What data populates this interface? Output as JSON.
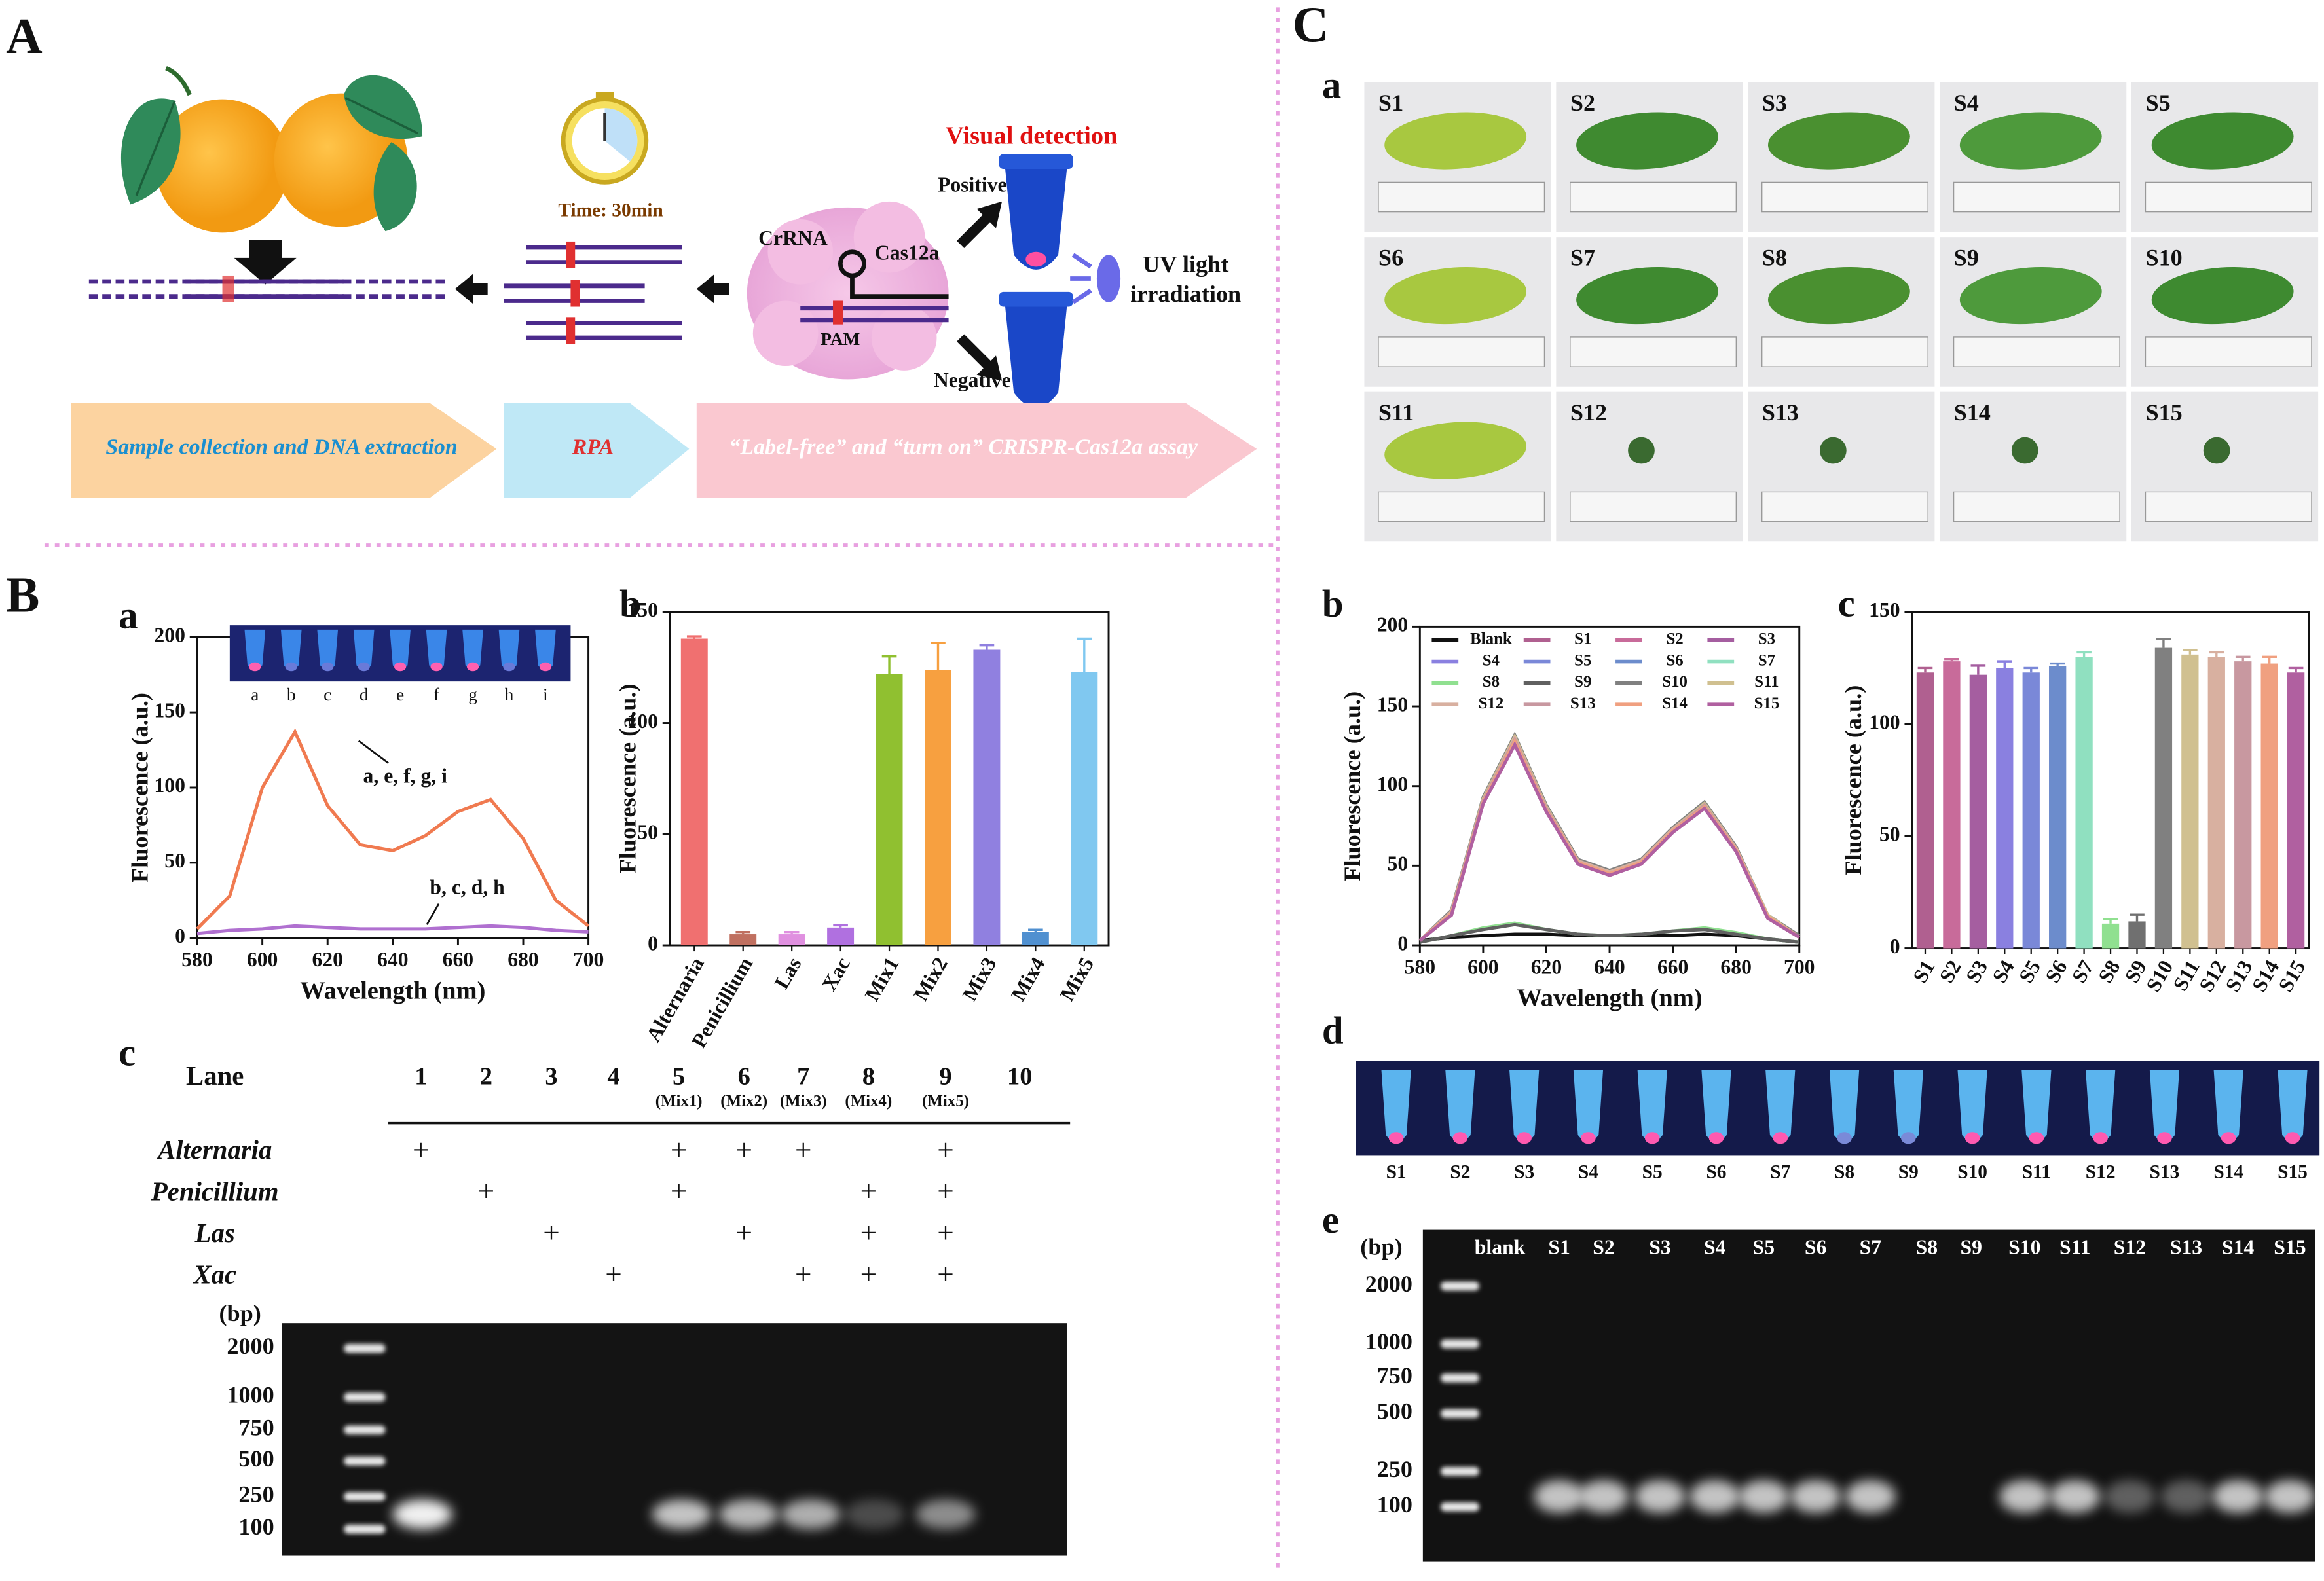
{
  "panel_labels": {
    "A": "A",
    "B": "B",
    "C": "C"
  },
  "sub_labels": {
    "Ba": "a",
    "Bb": "b",
    "Bc": "c",
    "Ca": "a",
    "Cb": "b",
    "Cc": "c",
    "Cd": "d",
    "Ce": "e"
  },
  "schematic": {
    "time": "Time: 30min",
    "visual": "Visual detection",
    "positive": "Positive",
    "negative": "Negative",
    "crrna": "CrRNA",
    "cas": "Cas12a",
    "pam": "PAM",
    "uv": [
      "UV light",
      "irradiation"
    ],
    "steps": [
      "Sample collection and DNA extraction",
      "RPA",
      "“Label-free” and “turn on” CRISPR-Cas12a assay"
    ]
  },
  "inset_labels": [
    "a",
    "b",
    "c",
    "d",
    "e",
    "f",
    "g",
    "h",
    "i"
  ],
  "lane_table": {
    "header": "Lane",
    "lanes": [
      "1",
      "2",
      "3",
      "4",
      "5",
      "6",
      "7",
      "8",
      "9",
      "10"
    ],
    "mix": [
      "(Mix1)",
      "(Mix2)",
      "(Mix3)",
      "(Mix4)",
      "(Mix5)"
    ],
    "rows": [
      {
        "name": "Alternaria",
        "marks": [
          "+",
          null,
          null,
          null,
          "+",
          "+",
          "+",
          null,
          "+",
          null
        ]
      },
      {
        "name": "Penicillium",
        "marks": [
          null,
          "+",
          null,
          null,
          "+",
          null,
          null,
          "+",
          "+",
          null
        ]
      },
      {
        "name": "Las",
        "marks": [
          null,
          null,
          "+",
          null,
          null,
          "+",
          null,
          "+",
          "+",
          null
        ]
      },
      {
        "name": "Xac",
        "marks": [
          null,
          null,
          null,
          "+",
          null,
          null,
          "+",
          "+",
          "+",
          null
        ]
      }
    ]
  },
  "gel_B": {
    "unit": "(bp)",
    "ladder": [
      2000,
      1000,
      750,
      500,
      250,
      100
    ]
  },
  "leaves": [
    "S1",
    "S2",
    "S3",
    "S4",
    "S5",
    "S6",
    "S7",
    "S8",
    "S9",
    "S10",
    "S11",
    "S12",
    "S13",
    "S14",
    "S15"
  ],
  "tubes": [
    "S1",
    "S2",
    "S3",
    "S4",
    "S5",
    "S6",
    "S7",
    "S8",
    "S9",
    "S10",
    "S11",
    "S12",
    "S13",
    "S14",
    "S15"
  ],
  "gel_C": {
    "unit": "(bp)",
    "ladder": [
      2000,
      1000,
      750,
      500,
      250,
      100
    ],
    "lanes": [
      "blank",
      "S1",
      "S2",
      "S3",
      "S4",
      "S5",
      "S6",
      "S7",
      "S8",
      "S9",
      "S10",
      "S11",
      "S12",
      "S13",
      "S14",
      "S15"
    ]
  },
  "chart_data": [
    {
      "type": "line",
      "x_label": "Wavelength (nm)",
      "y_label": "Fluorescence (a.u.)",
      "x": [
        580,
        590,
        600,
        610,
        620,
        630,
        640,
        650,
        660,
        670,
        680,
        690,
        700
      ],
      "xlim": [
        580,
        700
      ],
      "xticks": [
        580,
        600,
        620,
        640,
        660,
        680,
        700
      ],
      "ylim": [
        0,
        200
      ],
      "yticks": [
        0,
        50,
        100,
        150,
        200
      ],
      "annotations": [
        "a, e, f, g, i",
        "b, c, d, h"
      ],
      "series": [
        {
          "color": "#f07a50",
          "values": [
            6,
            28,
            100,
            137,
            88,
            62,
            58,
            68,
            84,
            92,
            66,
            25,
            8
          ]
        },
        {
          "color": "#b070d0",
          "values": [
            3,
            5,
            6,
            8,
            7,
            6,
            6,
            6,
            7,
            8,
            7,
            5,
            4
          ]
        }
      ]
    },
    {
      "type": "bar",
      "y_label": "Fluorescence (a.u.)",
      "categories": [
        "Alternaria",
        "Penicillium",
        "Las",
        "Xac",
        "Mix1",
        "Mix2",
        "Mix3",
        "Mix4",
        "Mix5"
      ],
      "values": [
        138,
        5,
        5,
        8,
        122,
        124,
        133,
        6,
        123
      ],
      "errors": [
        1,
        1,
        1,
        1,
        8,
        12,
        2,
        1,
        15
      ],
      "colors": [
        "#f07070",
        "#c07060",
        "#e090e0",
        "#b070e0",
        "#90c030",
        "#f7a040",
        "#9080e0",
        "#5090d0",
        "#80c8f0"
      ],
      "ylim": [
        0,
        150
      ],
      "yticks": [
        0,
        50,
        100,
        150
      ]
    },
    {
      "type": "line",
      "x_label": "Wavelength (nm)",
      "y_label": "Fluorescence (a.u.)",
      "x": [
        580,
        590,
        600,
        610,
        620,
        630,
        640,
        650,
        660,
        670,
        680,
        690,
        700
      ],
      "xlim": [
        580,
        700
      ],
      "xticks": [
        580,
        600,
        620,
        640,
        660,
        680,
        700
      ],
      "ylim": [
        0,
        200
      ],
      "yticks": [
        0,
        50,
        100,
        150,
        200
      ],
      "legend": "upper left",
      "series": [
        {
          "name": "Blank",
          "color": "#111111",
          "values": [
            3,
            5,
            6,
            7,
            7,
            6,
            6,
            6,
            6,
            7,
            6,
            4,
            2
          ]
        },
        {
          "name": "S1",
          "color": "#b06090",
          "values": [
            3,
            20,
            92,
            130,
            86,
            52,
            45,
            52,
            72,
            88,
            60,
            18,
            5
          ]
        },
        {
          "name": "S2",
          "color": "#c86b9a",
          "values": [
            3,
            21,
            90,
            127,
            85,
            53,
            46,
            53,
            73,
            87,
            61,
            18,
            5
          ]
        },
        {
          "name": "S3",
          "color": "#a55ea0",
          "values": [
            3,
            19,
            89,
            126,
            84,
            51,
            44,
            51,
            71,
            86,
            59,
            17,
            5
          ]
        },
        {
          "name": "S4",
          "color": "#8a80e0",
          "values": [
            3,
            20,
            91,
            128,
            85,
            52,
            45,
            52,
            72,
            89,
            61,
            18,
            5
          ]
        },
        {
          "name": "S5",
          "color": "#7a88d8",
          "values": [
            3,
            20,
            90,
            127,
            85,
            52,
            45,
            52,
            72,
            87,
            60,
            18,
            5
          ]
        },
        {
          "name": "S6",
          "color": "#6c8ccc",
          "values": [
            3,
            20,
            90,
            128,
            86,
            52,
            46,
            53,
            73,
            88,
            60,
            18,
            5
          ]
        },
        {
          "name": "S7",
          "color": "#90e0c0",
          "values": [
            3,
            21,
            92,
            130,
            87,
            53,
            46,
            53,
            73,
            88,
            61,
            19,
            5
          ]
        },
        {
          "name": "S8",
          "color": "#90e090",
          "values": [
            2,
            6,
            11,
            14,
            10,
            7,
            6,
            7,
            9,
            11,
            8,
            4,
            2
          ]
        },
        {
          "name": "S9",
          "color": "#606060",
          "values": [
            2,
            6,
            10,
            13,
            10,
            7,
            6,
            7,
            9,
            10,
            7,
            4,
            2
          ]
        },
        {
          "name": "S10",
          "color": "#808080",
          "values": [
            3,
            22,
            93,
            132,
            88,
            54,
            47,
            54,
            74,
            90,
            62,
            19,
            6
          ]
        },
        {
          "name": "S11",
          "color": "#d0c090",
          "values": [
            3,
            21,
            92,
            131,
            87,
            53,
            46,
            53,
            73,
            89,
            61,
            19,
            5
          ]
        },
        {
          "name": "S12",
          "color": "#d8b0a0",
          "values": [
            3,
            21,
            91,
            130,
            86,
            53,
            46,
            53,
            73,
            88,
            61,
            18,
            5
          ]
        },
        {
          "name": "S13",
          "color": "#c898a0",
          "values": [
            3,
            20,
            91,
            129,
            86,
            52,
            45,
            52,
            72,
            88,
            60,
            18,
            5
          ]
        },
        {
          "name": "S14",
          "color": "#f0a080",
          "values": [
            3,
            20,
            90,
            128,
            85,
            52,
            45,
            52,
            72,
            87,
            60,
            18,
            5
          ]
        },
        {
          "name": "S15",
          "color": "#b060a0",
          "values": [
            3,
            19,
            89,
            126,
            84,
            51,
            44,
            51,
            71,
            86,
            59,
            17,
            5
          ]
        }
      ]
    },
    {
      "type": "bar",
      "y_label": "Fluorescence (a.u.)",
      "categories": [
        "S1",
        "S2",
        "S3",
        "S4",
        "S5",
        "S6",
        "S7",
        "S8",
        "S9",
        "S10",
        "S11",
        "S12",
        "S13",
        "S14",
        "S15"
      ],
      "values": [
        123,
        128,
        122,
        125,
        123,
        126,
        130,
        11,
        12,
        134,
        131,
        130,
        128,
        127,
        123
      ],
      "errors": [
        2,
        1,
        4,
        3,
        2,
        1,
        2,
        2,
        3,
        4,
        2,
        2,
        2,
        3,
        2
      ],
      "colors": [
        "#b06090",
        "#c86b9a",
        "#a55ea0",
        "#8a80e0",
        "#7a88d8",
        "#6c8ccc",
        "#90e0c0",
        "#90e090",
        "#707070",
        "#808080",
        "#d0c090",
        "#d8b0a0",
        "#c898a0",
        "#f0a080",
        "#b060a0"
      ],
      "ylim": [
        0,
        150
      ],
      "yticks": [
        0,
        50,
        100,
        150
      ]
    }
  ]
}
